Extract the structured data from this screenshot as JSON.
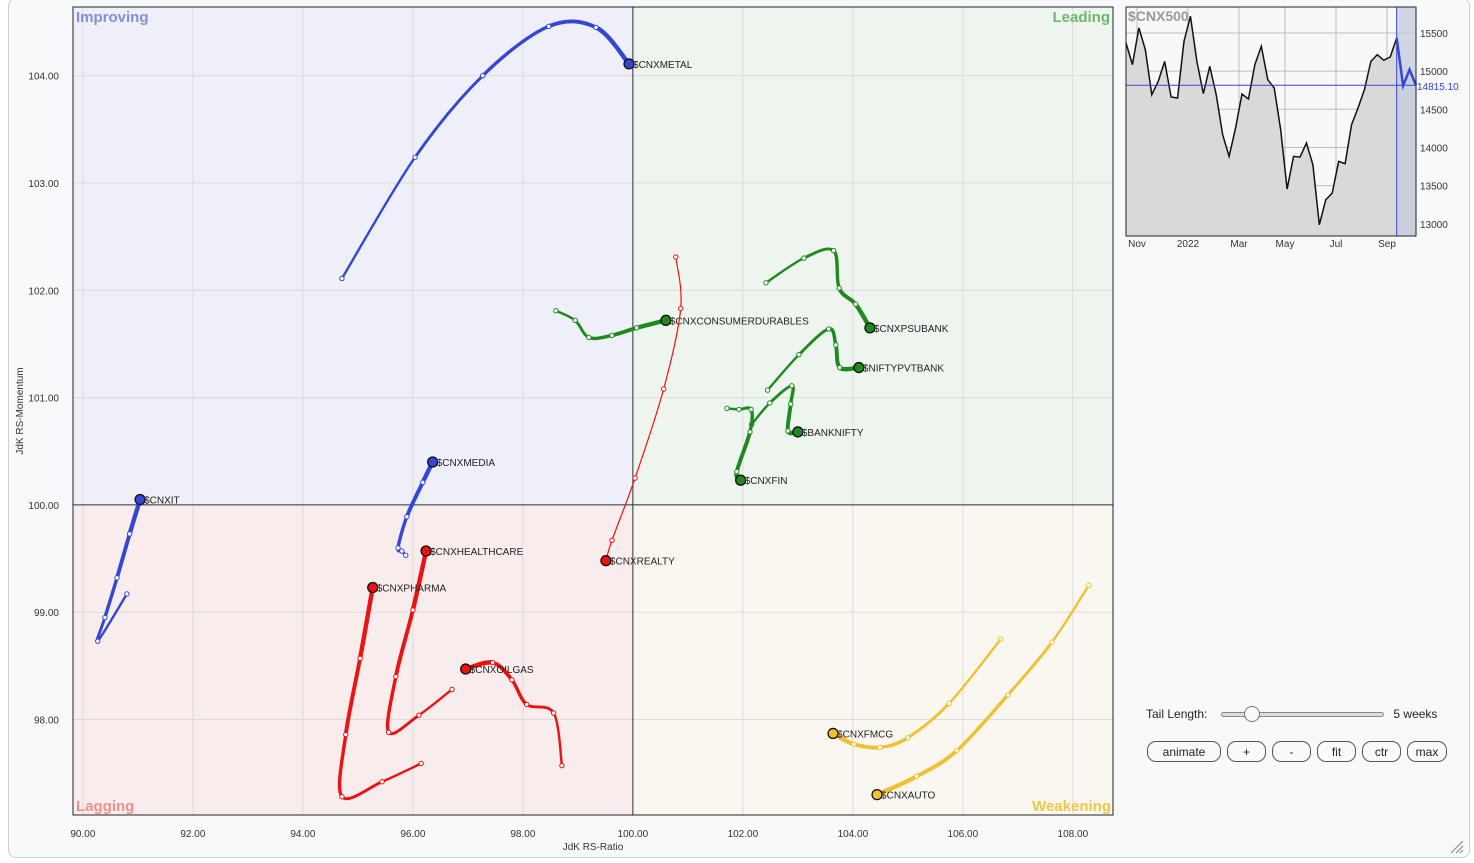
{
  "chart_data": {
    "type": "scatter",
    "subtype": "relative-rotation-graph",
    "xlabel": "JdK RS-Ratio",
    "ylabel": "JdK RS-Momentum",
    "xlim": [
      89.82,
      108.73
    ],
    "ylim": [
      97.11,
      104.64
    ],
    "x_ticks": [
      "90.00",
      "92.00",
      "94.00",
      "96.00",
      "98.00",
      "100.00",
      "102.00",
      "104.00",
      "106.00",
      "108.00"
    ],
    "y_ticks": [
      "98.00",
      "99.00",
      "100.00",
      "101.00",
      "102.00",
      "103.00",
      "104.00"
    ],
    "grid": true,
    "center": [
      100,
      100
    ],
    "quadrants": [
      {
        "label": "Improving",
        "position": "top-left",
        "bg": "#eeeff8",
        "color": "#8090dc"
      },
      {
        "label": "Leading",
        "position": "top-right",
        "bg": "#eef5ee",
        "color": "#6db86d"
      },
      {
        "label": "Lagging",
        "position": "bottom-left",
        "bg": "#f8ecec",
        "color": "#f29090"
      },
      {
        "label": "Weakening",
        "position": "bottom-right",
        "bg": "#f9f7f0",
        "color": "#f0c844"
      }
    ],
    "series": [
      {
        "name": "$CNXMETAL",
        "color": "#3347d4",
        "x": [
          94.71,
          96.04,
          97.27,
          98.47,
          99.33,
          99.93
        ],
        "y": [
          102.11,
          103.24,
          104.0,
          104.46,
          104.45,
          104.11
        ]
      },
      {
        "name": "$CNXCONSUMERDURABLES",
        "color": "#1e8a1e",
        "x": [
          98.6,
          98.95,
          99.2,
          99.62,
          100.07,
          100.6
        ],
        "y": [
          101.81,
          101.72,
          101.56,
          101.58,
          101.65,
          101.72
        ]
      },
      {
        "name": "$CNXREALTY",
        "color": "#ee1111",
        "line_style": "thin",
        "x": [
          100.78,
          100.87,
          100.56,
          100.04,
          99.62,
          99.51
        ],
        "y": [
          102.31,
          101.83,
          101.08,
          100.25,
          99.67,
          99.48
        ]
      },
      {
        "name": "$CNXPSUBANK",
        "color": "#1e8a1e",
        "x": [
          102.42,
          103.11,
          103.65,
          103.75,
          104.05,
          104.31
        ],
        "y": [
          102.07,
          102.3,
          102.37,
          102.02,
          101.87,
          101.65
        ]
      },
      {
        "name": "$NIFTYPVTBANK",
        "color": "#1e8a1e",
        "x": [
          102.45,
          103.02,
          103.56,
          103.69,
          103.76,
          104.11
        ],
        "y": [
          101.07,
          101.4,
          101.64,
          101.49,
          101.28,
          101.28
        ]
      },
      {
        "name": "$BANKNIFTY",
        "color": "#1e8a1e",
        "x": [
          102.16,
          102.49,
          102.89,
          102.87,
          102.82,
          103.0
        ],
        "y": [
          100.75,
          100.95,
          101.11,
          100.94,
          100.69,
          100.68
        ]
      },
      {
        "name": "$CNXFIN",
        "color": "#1e8a1e",
        "x": [
          101.71,
          101.93,
          102.15,
          102.13,
          101.89,
          101.96
        ],
        "y": [
          100.9,
          100.89,
          100.89,
          100.68,
          100.31,
          100.23
        ]
      },
      {
        "name": "$CNXMEDIA",
        "color": "#3347d4",
        "x": [
          95.87,
          95.8,
          95.73,
          95.89,
          96.18,
          96.36
        ],
        "y": [
          99.53,
          99.57,
          99.6,
          99.89,
          100.21,
          100.4
        ]
      },
      {
        "name": "$CNXIT",
        "color": "#3347d4",
        "x": [
          90.8,
          90.27,
          90.4,
          90.62,
          90.85,
          91.04
        ],
        "y": [
          99.17,
          98.73,
          98.95,
          99.32,
          99.73,
          100.05
        ]
      },
      {
        "name": "$CNXHEALTHCARE",
        "color": "#ee1111",
        "x": [
          96.71,
          96.11,
          95.56,
          95.69,
          96.0,
          96.24
        ],
        "y": [
          98.28,
          98.04,
          97.88,
          98.4,
          99.02,
          99.57
        ]
      },
      {
        "name": "$CNXPHARMA",
        "color": "#ee1111",
        "x": [
          96.15,
          95.44,
          94.71,
          94.78,
          95.04,
          95.27
        ],
        "y": [
          97.59,
          97.42,
          97.28,
          97.86,
          98.57,
          99.23
        ]
      },
      {
        "name": "$CNXOILGAS",
        "color": "#ee1111",
        "x": [
          98.71,
          98.56,
          98.07,
          97.8,
          97.45,
          96.96
        ],
        "y": [
          97.57,
          98.06,
          98.14,
          98.37,
          98.53,
          98.47
        ]
      },
      {
        "name": "$CNXFMCG",
        "color": "#f0c030",
        "x": [
          106.69,
          105.75,
          105.0,
          104.49,
          104.02,
          103.64
        ],
        "y": [
          98.75,
          98.15,
          97.83,
          97.74,
          97.77,
          97.87
        ]
      },
      {
        "name": "$CNXAUTO",
        "color": "#f0c030",
        "x": [
          108.29,
          107.62,
          106.82,
          105.89,
          105.16,
          104.44
        ],
        "y": [
          99.25,
          98.72,
          98.23,
          97.71,
          97.47,
          97.3
        ]
      }
    ]
  },
  "benchmark": {
    "title": "$CNX500",
    "current_value": "14815.10",
    "current_value_num": 14815.1,
    "ylim": [
      12840,
      15840
    ],
    "y_ticks": [
      "13000",
      "13500",
      "14000",
      "14500",
      "15000",
      "15500"
    ],
    "x_ticks": [
      "Nov",
      "2022",
      "Mar",
      "May",
      "Jul",
      "Sep"
    ],
    "line_color": "#111111",
    "tail_color": "#3347d4",
    "tail_start_index": 42,
    "values": [
      15369,
      15085,
      15566,
      15281,
      14691,
      14866,
      15128,
      14661,
      14648,
      15391,
      15719,
      15128,
      14705,
      15063,
      14691,
      14167,
      13883,
      14254,
      14700,
      14634,
      15085,
      15325,
      14888,
      14779,
      14233,
      13455,
      13883,
      13874,
      14058,
      13774,
      12987,
      13315,
      13402,
      13817,
      13787,
      14298,
      14517,
      14757,
      15128,
      15216,
      15142,
      15185,
      15434,
      14809,
      15019,
      14815.1
    ]
  },
  "controls": {
    "tail_length_label": "Tail Length:",
    "tail_length_value": 5,
    "tail_length_fraction": 0.15,
    "tail_length_text": "5 weeks",
    "buttons": [
      "animate",
      "+",
      "-",
      "fit",
      "ctr",
      "max"
    ]
  }
}
